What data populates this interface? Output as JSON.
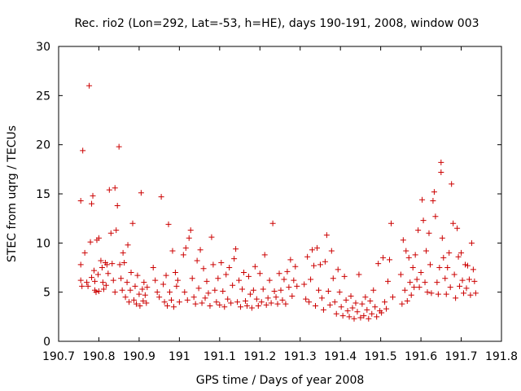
{
  "chart_data": {
    "type": "scatter",
    "title": "Rec. rio2 (Lon=292, Lat=-53, h=HE), days 190-191, 2008, window 003",
    "xlabel": "GPS time / Days of year 2008",
    "ylabel": "STEC from uqrg / TECUs",
    "xlim": [
      190.7,
      191.8
    ],
    "ylim": [
      0,
      30
    ],
    "xticks": [
      "190.7",
      "190.8",
      "190.9",
      "191",
      "191.1",
      "191.2",
      "191.3",
      "191.4",
      "191.5",
      "191.6",
      "191.7",
      "191.8"
    ],
    "yticks": [
      "0",
      "5",
      "10",
      "15",
      "20",
      "25",
      "30"
    ],
    "grid": false,
    "marker": "+",
    "color": "#cc0000",
    "x": [
      190.755,
      190.755,
      190.755,
      190.758,
      190.76,
      190.765,
      190.77,
      190.773,
      190.776,
      190.779,
      190.782,
      190.782,
      190.785,
      190.788,
      190.79,
      190.79,
      190.793,
      190.795,
      190.798,
      190.8,
      190.8,
      190.805,
      190.808,
      190.81,
      190.812,
      190.816,
      190.818,
      190.82,
      190.823,
      190.826,
      190.83,
      190.833,
      190.836,
      190.84,
      190.84,
      190.843,
      190.846,
      190.85,
      190.852,
      190.855,
      190.858,
      190.86,
      190.863,
      190.866,
      190.87,
      190.872,
      190.875,
      190.878,
      190.88,
      190.884,
      190.887,
      190.89,
      190.893,
      190.896,
      190.9,
      190.902,
      190.905,
      190.908,
      190.91,
      190.912,
      190.915,
      190.918,
      190.92,
      190.935,
      190.94,
      190.945,
      190.95,
      190.955,
      190.96,
      190.963,
      190.967,
      190.97,
      190.973,
      190.976,
      190.98,
      190.983,
      190.986,
      190.99,
      190.993,
      190.996,
      191.0,
      191.01,
      191.013,
      191.016,
      191.02,
      191.024,
      191.028,
      191.032,
      191.036,
      191.04,
      191.044,
      191.048,
      191.052,
      191.056,
      191.06,
      191.064,
      191.068,
      191.072,
      191.076,
      191.08,
      191.084,
      191.088,
      191.092,
      191.096,
      191.1,
      191.104,
      191.108,
      191.112,
      191.116,
      191.12,
      191.124,
      191.128,
      191.132,
      191.136,
      191.14,
      191.144,
      191.148,
      191.152,
      191.156,
      191.16,
      191.164,
      191.168,
      191.172,
      191.176,
      191.18,
      191.184,
      191.188,
      191.192,
      191.196,
      191.2,
      191.204,
      191.208,
      191.212,
      191.216,
      191.22,
      191.224,
      191.228,
      191.232,
      191.236,
      191.24,
      191.244,
      191.248,
      191.252,
      191.256,
      191.26,
      191.264,
      191.268,
      191.272,
      191.276,
      191.28,
      191.284,
      191.288,
      191.292,
      191.31,
      191.314,
      191.318,
      191.322,
      191.326,
      191.33,
      191.334,
      191.338,
      191.342,
      191.346,
      191.35,
      191.354,
      191.358,
      191.362,
      191.366,
      191.37,
      191.374,
      191.378,
      191.382,
      191.386,
      191.39,
      191.394,
      191.398,
      191.402,
      191.406,
      191.41,
      191.414,
      191.418,
      191.422,
      191.426,
      191.43,
      191.434,
      191.438,
      191.442,
      191.446,
      191.45,
      191.454,
      191.458,
      191.462,
      191.466,
      191.47,
      191.474,
      191.478,
      191.482,
      191.486,
      191.49,
      191.494,
      191.498,
      191.502,
      191.506,
      191.51,
      191.514,
      191.518,
      191.522,
      191.526,
      191.53,
      191.55,
      191.553,
      191.556,
      191.56,
      191.563,
      191.566,
      191.57,
      191.573,
      191.576,
      191.58,
      191.583,
      191.586,
      191.59,
      191.593,
      191.596,
      191.6,
      191.603,
      191.606,
      191.61,
      191.613,
      191.616,
      191.62,
      191.623,
      191.626,
      191.63,
      191.633,
      191.636,
      191.64,
      191.643,
      191.646,
      191.65,
      191.65,
      191.653,
      191.656,
      191.66,
      191.663,
      191.666,
      191.67,
      191.673,
      191.676,
      191.68,
      191.683,
      191.686,
      191.69,
      191.693,
      191.696,
      191.7,
      191.703,
      191.706,
      191.71,
      191.713,
      191.716,
      191.72,
      191.723,
      191.726,
      191.73,
      191.733,
      191.736
    ],
    "y": [
      14.3,
      7.8,
      6.2,
      5.6,
      19.4,
      9.0,
      6.0,
      5.6,
      26.0,
      10.1,
      14.0,
      6.5,
      14.8,
      7.2,
      5.2,
      6.1,
      5.0,
      10.3,
      6.8,
      10.5,
      5.1,
      8.2,
      7.5,
      6.0,
      5.3,
      8.0,
      5.7,
      7.8,
      6.9,
      15.4,
      11.0,
      7.9,
      6.2,
      15.6,
      5.0,
      11.3,
      13.8,
      19.8,
      7.8,
      6.4,
      5.2,
      9.0,
      8.0,
      4.5,
      6.0,
      9.8,
      4.0,
      5.2,
      7.0,
      12.0,
      4.2,
      5.6,
      3.8,
      6.7,
      4.8,
      3.6,
      15.1,
      5.3,
      4.1,
      6.0,
      4.7,
      3.9,
      5.5,
      7.5,
      6.2,
      5.0,
      4.5,
      14.7,
      5.8,
      4.0,
      6.7,
      3.6,
      11.9,
      5.0,
      4.2,
      9.2,
      3.5,
      7.0,
      5.6,
      6.2,
      4.0,
      8.8,
      5.0,
      9.5,
      4.2,
      10.5,
      11.3,
      6.4,
      4.5,
      3.8,
      8.2,
      5.4,
      9.3,
      3.9,
      7.4,
      4.4,
      6.1,
      4.9,
      3.6,
      10.6,
      7.8,
      5.2,
      4.0,
      6.4,
      3.7,
      8.0,
      5.1,
      3.5,
      6.8,
      4.3,
      7.5,
      3.9,
      5.7,
      8.4,
      9.4,
      4.0,
      6.2,
      3.5,
      5.3,
      7.0,
      4.1,
      3.6,
      6.6,
      4.8,
      3.4,
      5.2,
      7.6,
      4.3,
      3.6,
      6.9,
      4.0,
      5.3,
      8.8,
      3.7,
      4.4,
      6.2,
      3.9,
      12.0,
      5.1,
      4.5,
      3.8,
      6.9,
      5.2,
      4.2,
      6.3,
      3.8,
      7.1,
      5.5,
      8.3,
      4.6,
      6.2,
      7.6,
      5.6,
      5.8,
      4.3,
      8.6,
      4.0,
      6.3,
      9.3,
      7.7,
      3.6,
      9.5,
      5.2,
      7.8,
      4.4,
      3.2,
      8.1,
      10.8,
      5.1,
      3.7,
      9.2,
      6.4,
      4.0,
      2.8,
      7.3,
      5.0,
      3.5,
      2.6,
      6.6,
      4.2,
      3.1,
      2.5,
      4.6,
      3.4,
      2.3,
      3.9,
      3.0,
      6.8,
      2.4,
      3.8,
      2.6,
      4.5,
      3.2,
      2.3,
      4.1,
      2.8,
      5.2,
      3.5,
      2.5,
      7.9,
      3.1,
      2.9,
      8.5,
      4.0,
      3.3,
      6.1,
      8.3,
      12.0,
      4.5,
      6.8,
      3.8,
      10.3,
      5.2,
      9.2,
      4.1,
      8.5,
      6.0,
      4.7,
      7.5,
      5.5,
      8.8,
      6.3,
      11.3,
      5.5,
      7.0,
      14.4,
      12.3,
      6.0,
      9.2,
      5.0,
      11.0,
      7.8,
      4.9,
      14.3,
      15.2,
      12.7,
      6.0,
      4.8,
      7.5,
      18.2,
      17.2,
      10.5,
      8.5,
      6.4,
      4.8,
      7.5,
      9.0,
      5.5,
      16.0,
      12.0,
      6.8,
      4.4,
      11.5,
      8.6,
      5.6,
      9.0,
      6.2,
      4.9,
      7.8,
      5.4,
      7.7,
      6.3,
      4.7,
      10.0,
      7.3,
      6.1,
      4.9
    ]
  }
}
